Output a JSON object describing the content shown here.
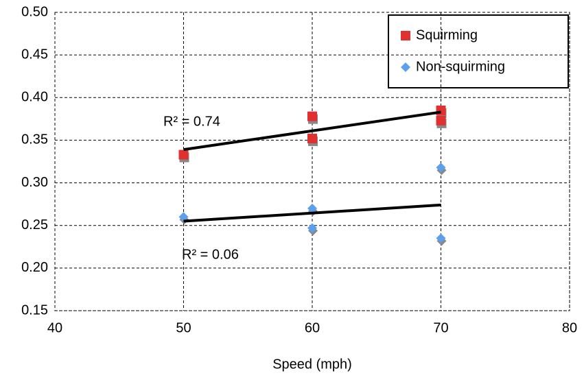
{
  "chart_data": {
    "type": "scatter",
    "x_label": "Speed (mph)",
    "xlim": [
      40,
      80
    ],
    "xticks": [
      40,
      50,
      60,
      70,
      80
    ],
    "ylim": [
      0.15,
      0.5
    ],
    "yticks": [
      0.15,
      {
        "value": 0.2,
        "label": "0.20"
      },
      0.25,
      {
        "value": 0.3,
        "label": "0.30"
      },
      0.35,
      {
        "value": 0.4,
        "label": "0.40"
      },
      0.45,
      {
        "value": 0.5,
        "label": "0.50"
      }
    ],
    "grid": true,
    "legend": "upper right",
    "series": [
      {
        "name": "Squirming",
        "color": "#e03030",
        "marker": "square",
        "x": [
          50,
          60,
          60,
          70,
          70
        ],
        "values": [
          0.333,
          0.378,
          0.352,
          0.385,
          0.373
        ],
        "trendline": {
          "x": [
            50,
            70
          ],
          "y": [
            0.339,
            0.383
          ]
        }
      },
      {
        "name": "Non-squirming",
        "color": "#5aa0ee",
        "marker": "diamond",
        "x": [
          50,
          60,
          60,
          70,
          70
        ],
        "values": [
          0.26,
          0.27,
          0.247,
          0.318,
          0.235
        ],
        "trendline": {
          "x": [
            50,
            70
          ],
          "y": [
            0.255,
            0.274
          ]
        }
      }
    ],
    "annotations": [
      "R² = 0.74",
      "R² = 0.06"
    ]
  }
}
